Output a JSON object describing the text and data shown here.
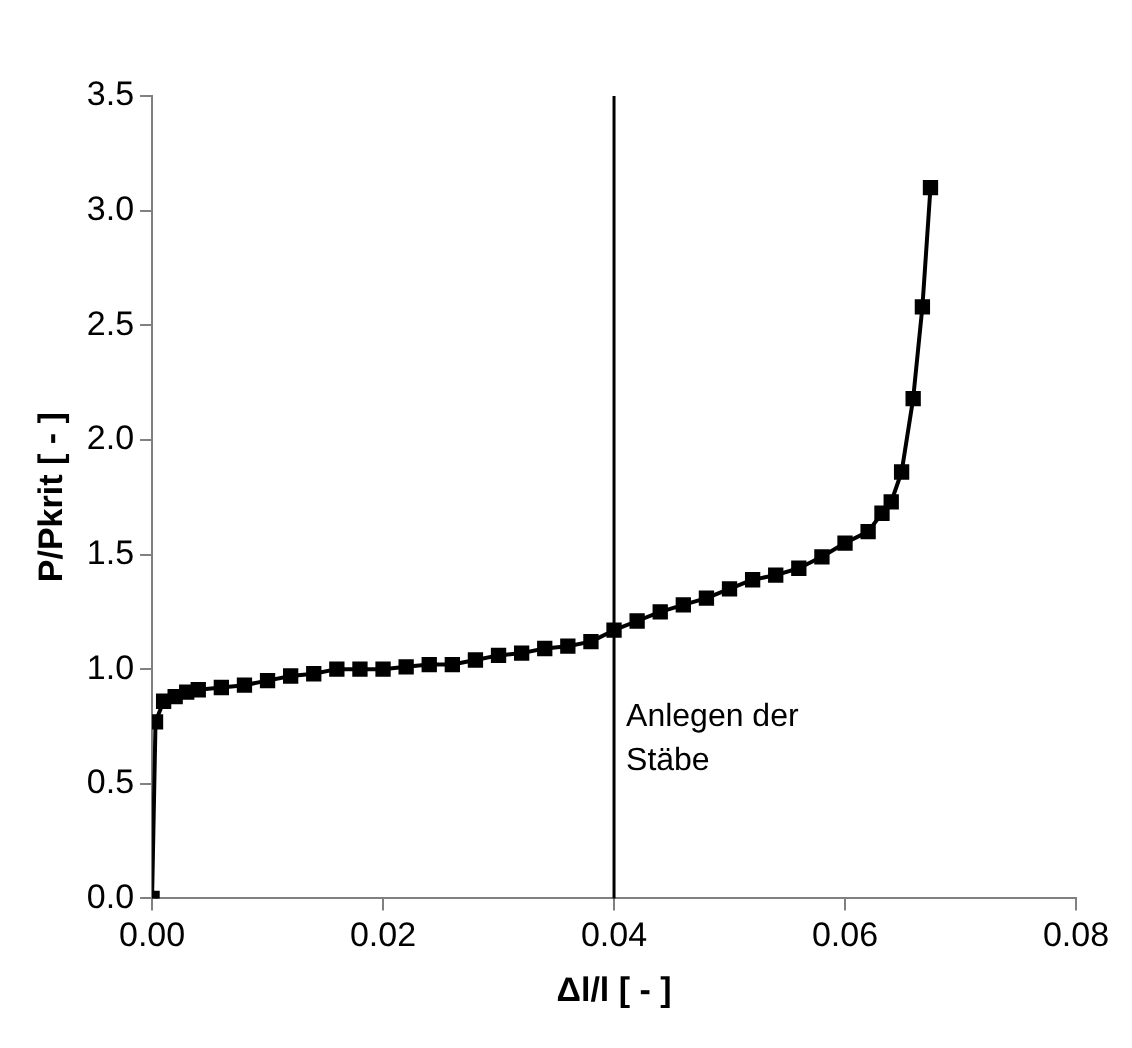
{
  "chart_data": {
    "type": "line",
    "xlabel": "Δl/l [ - ]",
    "ylabel": "P/Pkrit [ - ]",
    "series": [
      {
        "color": "#000000",
        "x": [
          0,
          0.0003,
          0.001,
          0.002,
          0.003,
          0.004,
          0.006,
          0.008,
          0.01,
          0.012,
          0.014,
          0.016,
          0.018,
          0.02,
          0.022,
          0.024,
          0.026,
          0.028,
          0.03,
          0.032,
          0.034,
          0.036,
          0.038,
          0.04,
          0.042,
          0.044,
          0.046,
          0.048,
          0.05,
          0.052,
          0.054,
          0.056,
          0.058,
          0.06,
          0.062,
          0.0632,
          0.064,
          0.0649,
          0.0659,
          0.0667,
          0.0674
        ],
        "values": [
          0,
          0.77,
          0.86,
          0.88,
          0.9,
          0.91,
          0.92,
          0.93,
          0.95,
          0.97,
          0.98,
          1.0,
          1.0,
          1.0,
          1.01,
          1.02,
          1.02,
          1.04,
          1.06,
          1.07,
          1.09,
          1.1,
          1.12,
          1.17,
          1.21,
          1.25,
          1.28,
          1.31,
          1.35,
          1.39,
          1.41,
          1.44,
          1.49,
          1.55,
          1.6,
          1.68,
          1.73,
          1.86,
          2.18,
          2.58,
          3.1
        ]
      }
    ],
    "xlim": [
      0,
      0.08
    ],
    "xticks": [
      {
        "value": 0,
        "label": "0.00"
      },
      {
        "value": 0.02,
        "label": "0.02"
      },
      {
        "value": 0.04,
        "label": "0.04"
      },
      {
        "value": 0.06,
        "label": "0.06"
      },
      {
        "value": 0.08,
        "label": "0.08"
      }
    ],
    "ylim": [
      0,
      3.5
    ],
    "yticks": [
      {
        "value": 0,
        "label": "0.0"
      },
      {
        "value": 0.5,
        "label": "0.5"
      },
      {
        "value": 1,
        "label": "1.0"
      },
      {
        "value": 1.5,
        "label": "1.5"
      },
      {
        "value": 2,
        "label": "2.0"
      },
      {
        "value": 2.5,
        "label": "2.5"
      },
      {
        "value": 3,
        "label": "3.0"
      },
      {
        "value": 3.5,
        "label": "3.5"
      }
    ],
    "grid": false,
    "legend": false,
    "marker": "square",
    "line_style": "solid",
    "ref_lines": [
      {
        "axis": "x",
        "value": 0.04,
        "color": "#000000"
      }
    ],
    "annotations": [
      {
        "text": "Anlegen der Stäbe",
        "x": 0.04,
        "y": 0.75
      }
    ]
  }
}
